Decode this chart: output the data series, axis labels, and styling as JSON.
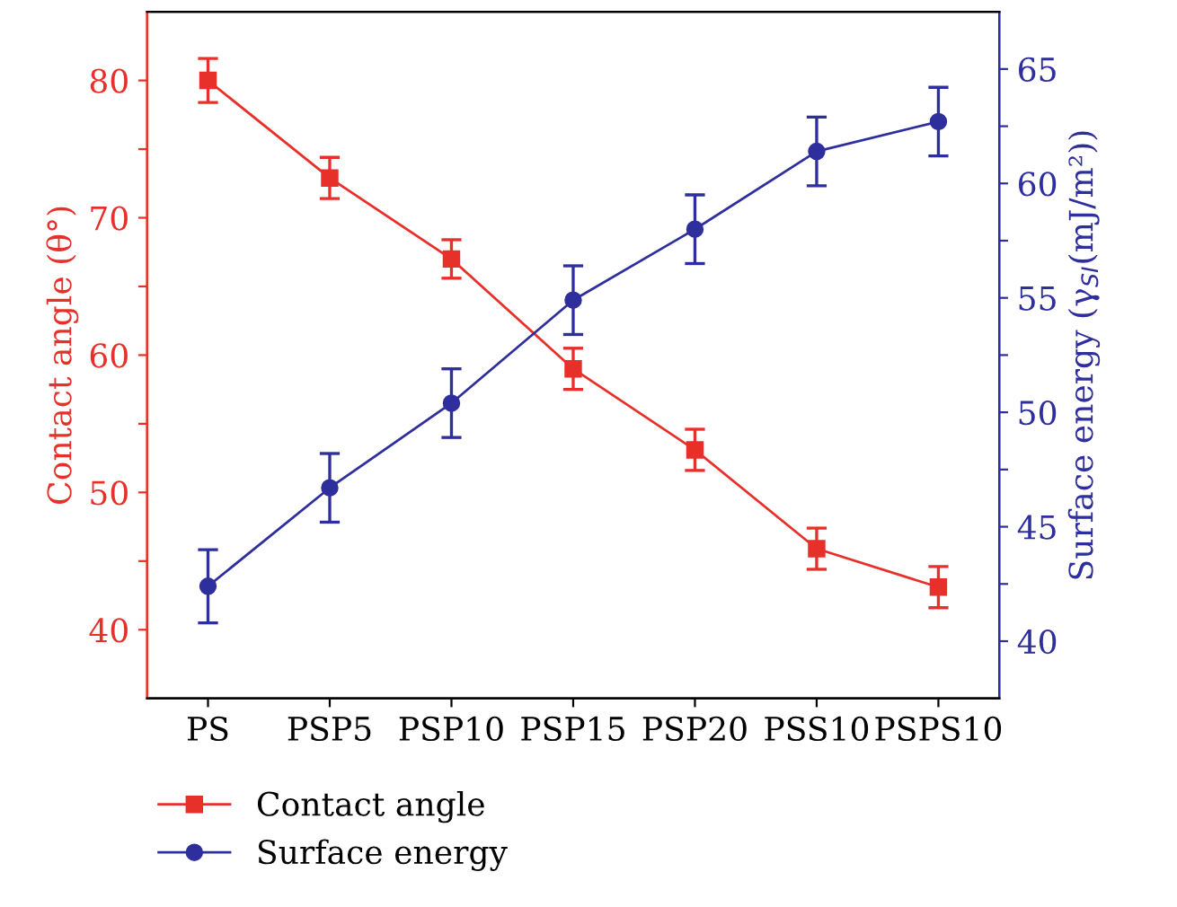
{
  "chart_data": {
    "type": "line",
    "xlabel": null,
    "ylabel": "Contact angle (θ°)",
    "y2label": "Surface energy (γ$_{SI}$(mJ/m²))",
    "categories": [
      "PS",
      "PSP5",
      "PSP10",
      "PSP15",
      "PSP20",
      "PSS10",
      "PSPS10"
    ],
    "series": [
      {
        "name": "Contact angle",
        "color": "#e8302a",
        "marker": "square",
        "values": [
          80,
          72.9,
          67,
          59,
          53.1,
          45.9,
          43.1
        ],
        "errors": [
          1.6,
          1.5,
          1.4,
          1.5,
          1.5,
          1.5,
          1.5
        ]
      },
      {
        "name": "Surface energy",
        "color": "#2e2e9c",
        "marker": "circle",
        "axis": "y2",
        "values": [
          42.4,
          46.7,
          50.4,
          54.9,
          58,
          61.4,
          62.7
        ],
        "errors": [
          1.6,
          1.5,
          1.5,
          1.5,
          1.5,
          1.5,
          1.5
        ]
      }
    ],
    "ylim": [
      35,
      85
    ],
    "yticks": [
      {
        "value": 40,
        "label": "40"
      },
      {
        "value": 45,
        "label": null
      },
      {
        "value": 50,
        "label": "50"
      },
      {
        "value": 55,
        "label": null
      },
      {
        "value": 60,
        "label": "60"
      },
      {
        "value": 65,
        "label": null
      },
      {
        "value": 70,
        "label": "70"
      },
      {
        "value": 75,
        "label": null
      },
      {
        "value": 80,
        "label": "80"
      }
    ],
    "y2lim": [
      37.5,
      67.5
    ],
    "y2ticks": [
      {
        "value": 40,
        "label": "40"
      },
      {
        "value": 42.5,
        "label": null
      },
      {
        "value": 45,
        "label": "45"
      },
      {
        "value": 47.5,
        "label": null
      },
      {
        "value": 50,
        "label": "50"
      },
      {
        "value": 52.5,
        "label": null
      },
      {
        "value": 55,
        "label": "55"
      },
      {
        "value": 57.5,
        "label": null
      },
      {
        "value": 60,
        "label": "60"
      },
      {
        "value": 62.5,
        "label": null
      },
      {
        "value": 65,
        "label": "65"
      }
    ],
    "grid": false,
    "legend": "bottom left",
    "line_style": "solid"
  }
}
